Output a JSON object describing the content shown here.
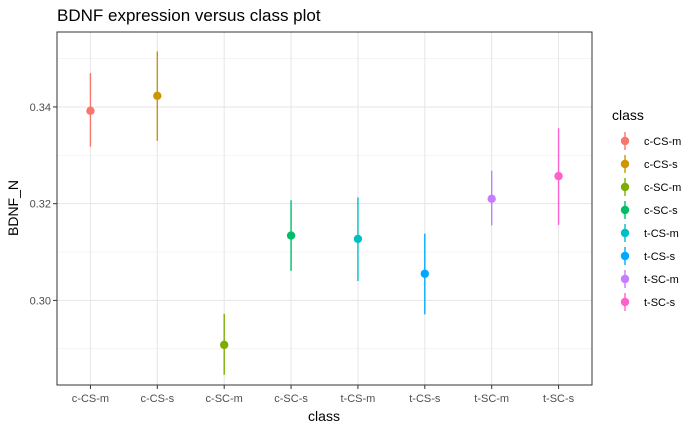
{
  "chart_data": {
    "type": "scatter",
    "title": "BDNF expression versus class plot",
    "xlabel": "class",
    "ylabel": "BDNF_N",
    "categories": [
      "c-CS-m",
      "c-CS-s",
      "c-SC-m",
      "c-SC-s",
      "t-CS-m",
      "t-CS-s",
      "t-SC-m",
      "t-SC-s"
    ],
    "points": [
      {
        "category": "c-CS-m",
        "y": 0.3392,
        "ymin": 0.3318,
        "ymax": 0.347
      },
      {
        "category": "c-CS-s",
        "y": 0.3423,
        "ymin": 0.333,
        "ymax": 0.3515
      },
      {
        "category": "c-SC-m",
        "y": 0.2908,
        "ymin": 0.2846,
        "ymax": 0.2972
      },
      {
        "category": "c-SC-s",
        "y": 0.3134,
        "ymin": 0.3061,
        "ymax": 0.3207
      },
      {
        "category": "t-CS-m",
        "y": 0.3127,
        "ymin": 0.304,
        "ymax": 0.3213
      },
      {
        "category": "t-CS-s",
        "y": 0.3055,
        "ymin": 0.2971,
        "ymax": 0.3138
      },
      {
        "category": "t-SC-m",
        "y": 0.321,
        "ymin": 0.3155,
        "ymax": 0.3268
      },
      {
        "category": "t-SC-s",
        "y": 0.3257,
        "ymin": 0.3156,
        "ymax": 0.3356
      }
    ],
    "colors": [
      "#F8766D",
      "#CD9600",
      "#7CAE00",
      "#00BE67",
      "#00BFC4",
      "#00A9FF",
      "#C77CFF",
      "#FF61CC"
    ],
    "yticks": [
      0.3,
      0.32,
      0.34
    ],
    "ytick_labels": [
      "0.30",
      "0.32",
      "0.34"
    ],
    "ylim": [
      0.2825,
      0.3555
    ],
    "grid": true,
    "legend": {
      "title": "class",
      "placement": "right",
      "entries": [
        "c-CS-m",
        "c-CS-s",
        "c-SC-m",
        "c-SC-s",
        "t-CS-m",
        "t-CS-s",
        "t-SC-m",
        "t-SC-s"
      ]
    }
  }
}
